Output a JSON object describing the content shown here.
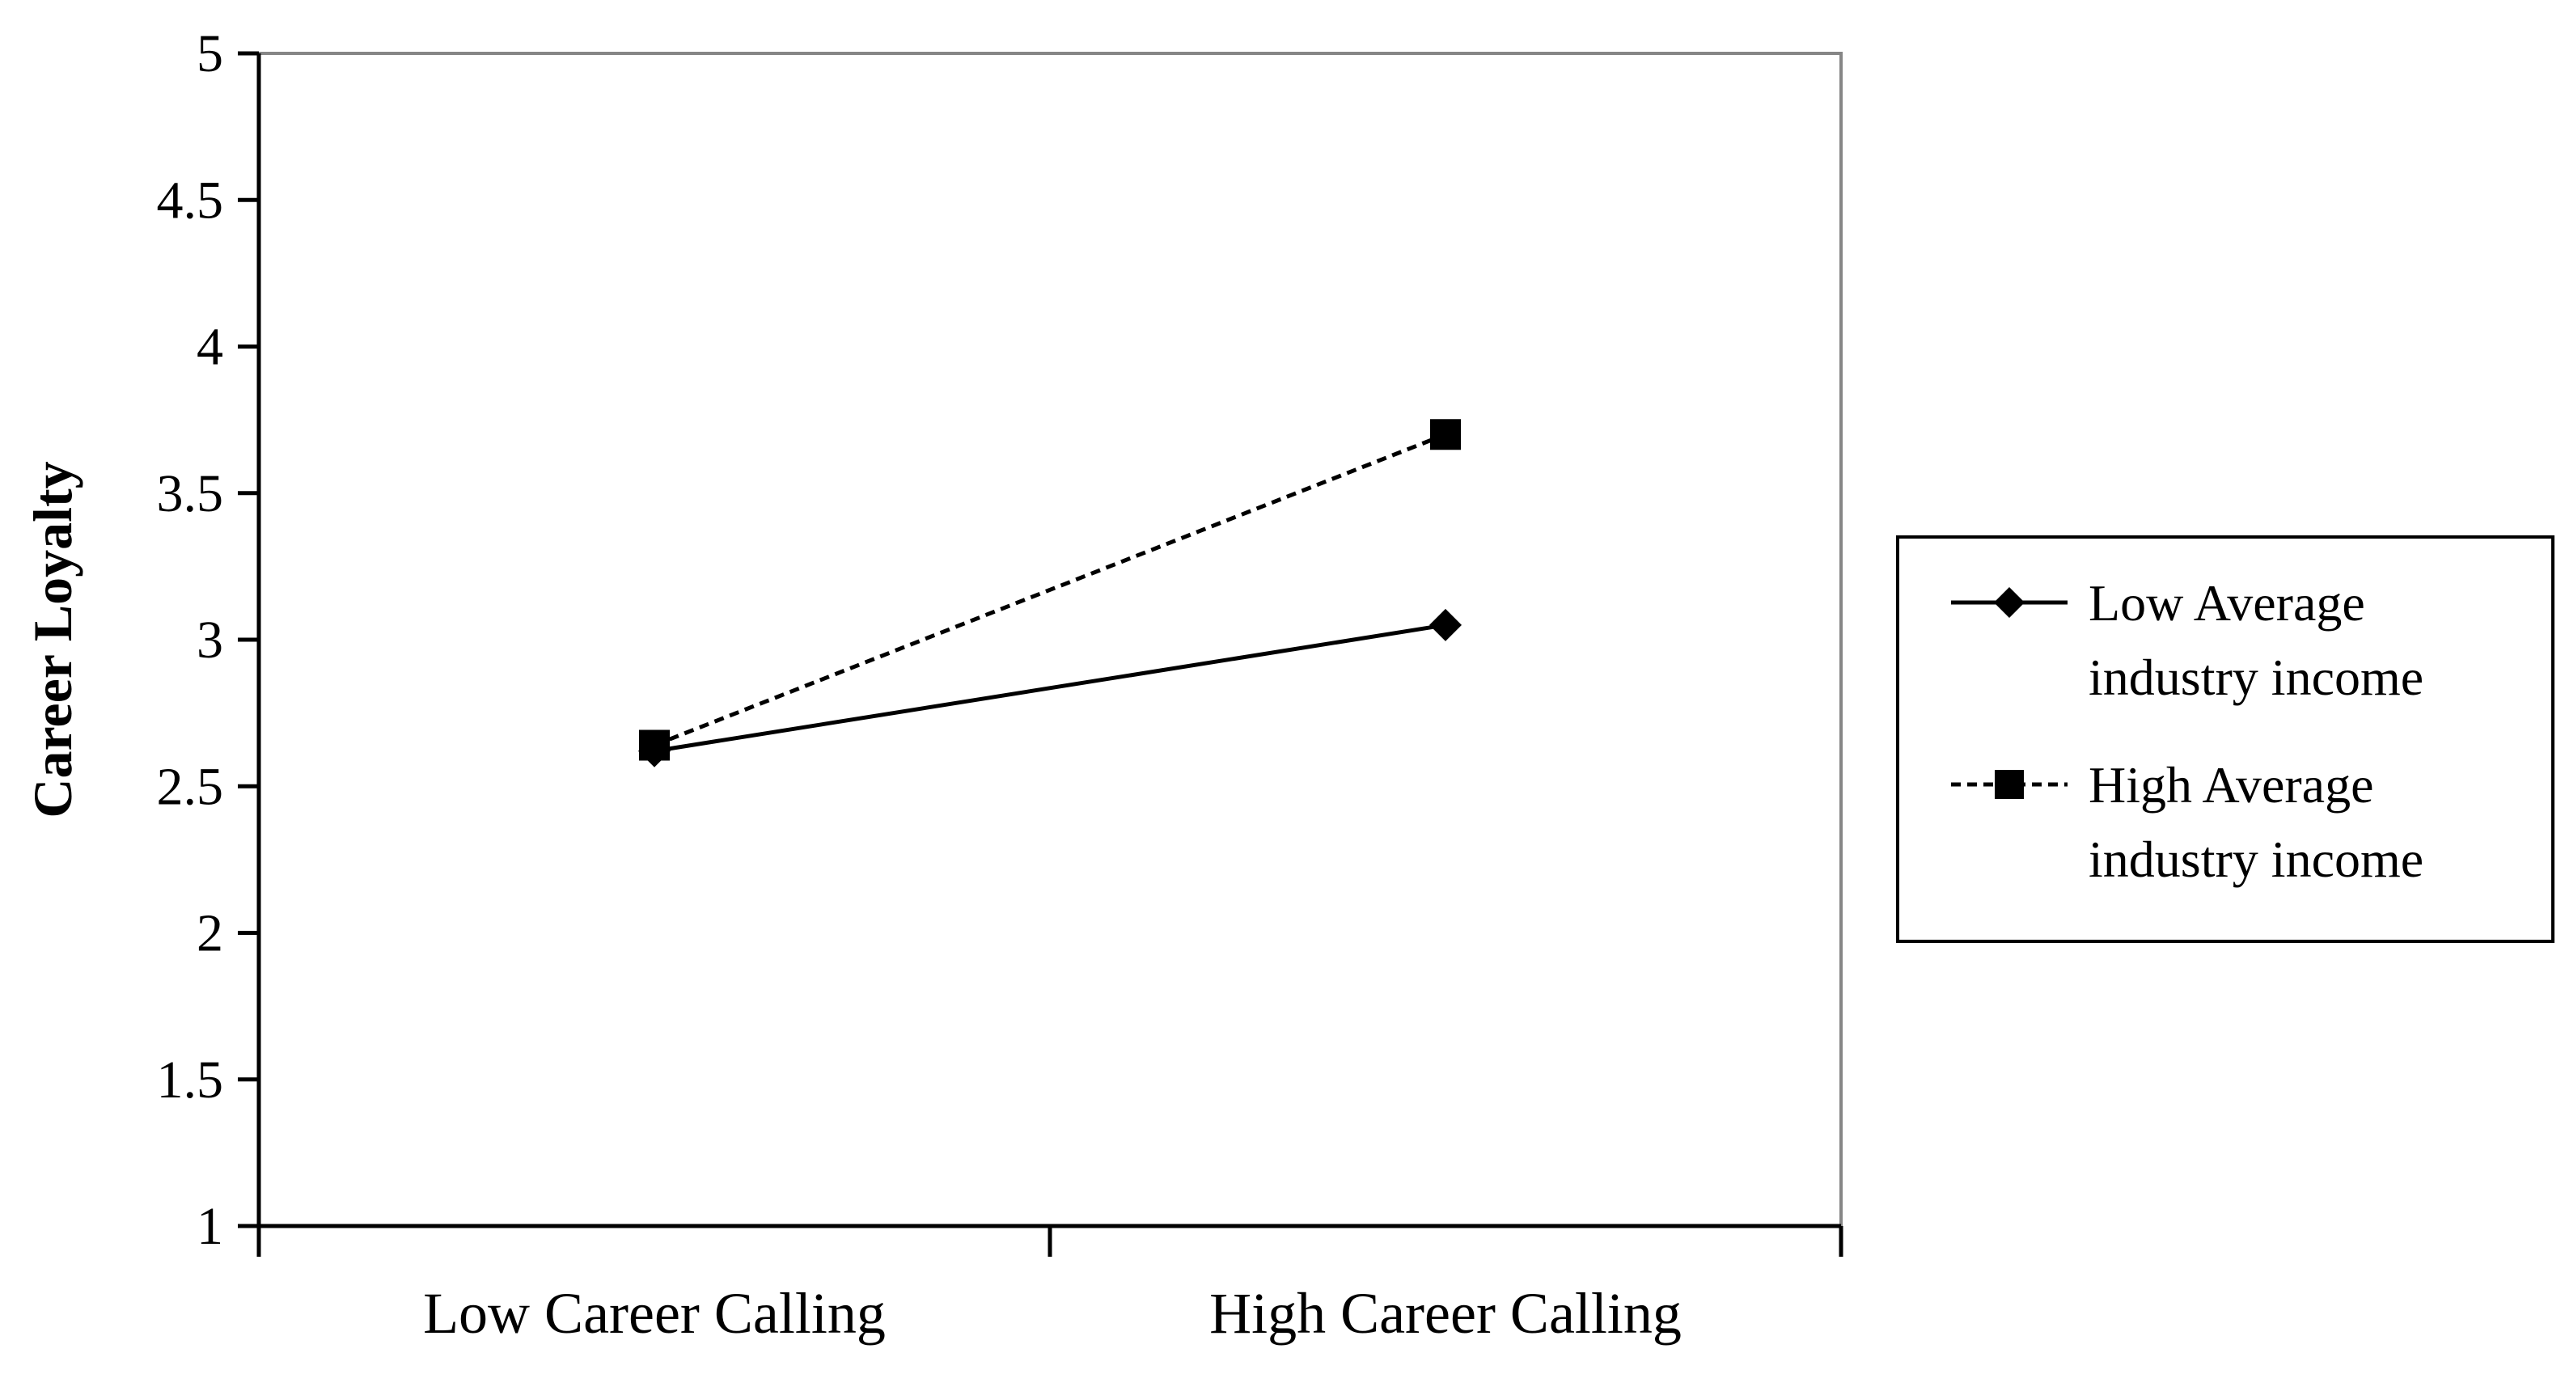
{
  "chart_data": {
    "type": "line",
    "title": "",
    "xlabel": "",
    "ylabel": "Career Loyalty",
    "categories": [
      "Low Career Calling",
      "High Career Calling"
    ],
    "ylim": [
      1,
      5
    ],
    "yticks": [
      "1",
      "1.5",
      "2",
      "2.5",
      "3",
      "3.5",
      "4",
      "4.5",
      "5"
    ],
    "grid": false,
    "legend_position": "right",
    "series": [
      {
        "name": "Low Average industry income",
        "name_lines": [
          "Low Average",
          "industry income"
        ],
        "values": [
          2.62,
          3.05
        ],
        "line_style": "solid",
        "marker": "diamond",
        "color": "#000000"
      },
      {
        "name": "High Average industry income",
        "name_lines": [
          "High Average",
          "industry income"
        ],
        "values": [
          2.64,
          3.7
        ],
        "line_style": "dashed",
        "marker": "square",
        "color": "#000000"
      }
    ]
  }
}
